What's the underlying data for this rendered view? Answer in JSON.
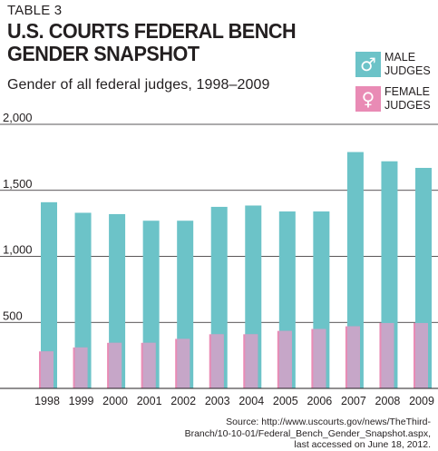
{
  "header": {
    "table_label": "TABLE 3",
    "title_line1": "U.S. COURTS FEDERAL BENCH",
    "title_line2": "GENDER SNAPSHOT",
    "subtitle": "Gender of all federal judges, 1998–2009"
  },
  "legend": {
    "male": {
      "symbol": "♂",
      "line1": "MALE",
      "line2": "JUDGES",
      "color": "#6cc3c8"
    },
    "female": {
      "symbol": "♀",
      "line1": "FEMALE",
      "line2": "JUDGES",
      "color": "#e98bb5"
    }
  },
  "source": {
    "line1": "Source: http://www.uscourts.gov/news/TheThird-",
    "line2": "Branch/10-10-01/Federal_Bench_Gender_Snapshot.aspx,",
    "line3": "last accessed on June 18, 2012."
  },
  "chart_data": {
    "type": "bar",
    "categories": [
      "1998",
      "1999",
      "2000",
      "2001",
      "2002",
      "2003",
      "2004",
      "2005",
      "2006",
      "2007",
      "2008",
      "2009"
    ],
    "series": [
      {
        "name": "MALE JUDGES",
        "color": "#6cc3c8",
        "values": [
          1410,
          1330,
          1320,
          1270,
          1270,
          1375,
          1385,
          1340,
          1340,
          1790,
          1720,
          1670
        ]
      },
      {
        "name": "FEMALE JUDGES",
        "color": "#e98bb5",
        "values": [
          280,
          310,
          345,
          345,
          375,
          410,
          410,
          435,
          450,
          470,
          495,
          495
        ]
      }
    ],
    "overlap_color": "#c6a6c8",
    "y_ticks": [
      500,
      1000,
      1500,
      2000
    ],
    "y_tick_labels": [
      "500",
      "1,000",
      "1,500",
      "2,000"
    ],
    "ylim": [
      0,
      2000
    ],
    "grid": true
  }
}
